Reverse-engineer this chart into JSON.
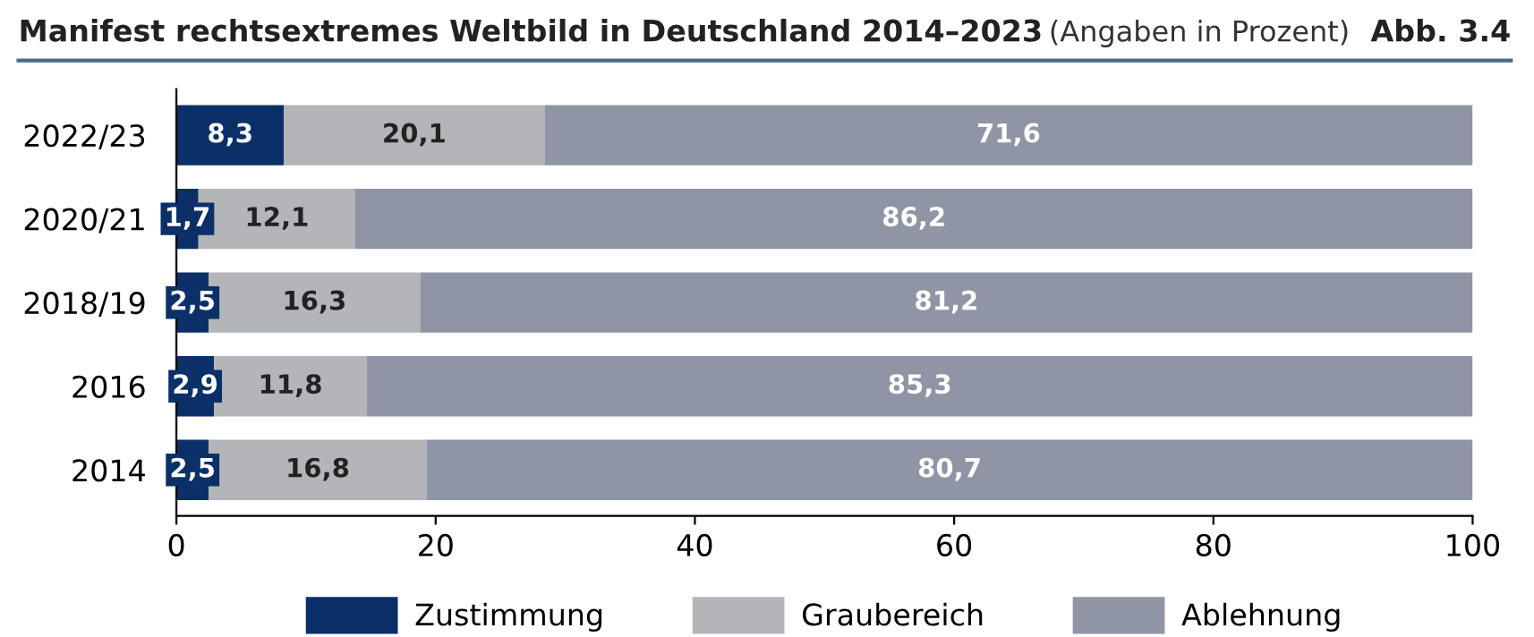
{
  "chart_data": {
    "type": "bar",
    "orientation": "horizontal",
    "stacked": true,
    "title": "Manifest rechtsextremes Weltbild in Deutschland 2014–2023",
    "subtitle": "(Angaben in Prozent)",
    "annotations": [
      "Abb. 3.4"
    ],
    "categories": [
      "2022/23",
      "2020/21",
      "2018/19",
      "2016",
      "2014"
    ],
    "series": [
      {
        "name": "Zustimmung",
        "color": "#0b3068",
        "values": [
          8.3,
          1.7,
          2.5,
          2.9,
          2.5
        ],
        "value_labels": [
          "8,3",
          "1,7",
          "2,5",
          "2,9",
          "2,5"
        ]
      },
      {
        "name": "Graubereich",
        "color": "#b4b5b9",
        "values": [
          20.1,
          12.1,
          16.3,
          11.8,
          16.8
        ],
        "value_labels": [
          "20,1",
          "12,1",
          "16,3",
          "11,8",
          "16,8"
        ]
      },
      {
        "name": "Ablehnung",
        "color": "#8f95a5",
        "values": [
          71.6,
          86.2,
          81.2,
          85.3,
          80.7
        ],
        "value_labels": [
          "71,6",
          "86,2",
          "81,2",
          "85,3",
          "80,7"
        ]
      }
    ],
    "xlim": [
      0,
      100
    ],
    "xticks": [
      0,
      20,
      40,
      60,
      80,
      100
    ],
    "grid": false,
    "legend": "bottom"
  }
}
